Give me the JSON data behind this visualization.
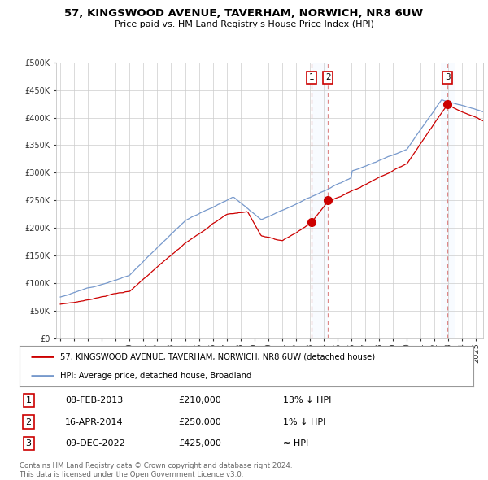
{
  "title": "57, KINGSWOOD AVENUE, TAVERHAM, NORWICH, NR8 6UW",
  "subtitle": "Price paid vs. HM Land Registry's House Price Index (HPI)",
  "legend_line1": "57, KINGSWOOD AVENUE, TAVERHAM, NORWICH, NR8 6UW (detached house)",
  "legend_line2": "HPI: Average price, detached house, Broadland",
  "footer1": "Contains HM Land Registry data © Crown copyright and database right 2024.",
  "footer2": "This data is licensed under the Open Government Licence v3.0.",
  "transactions": [
    {
      "num": "1",
      "date": "08-FEB-2013",
      "price": "£210,000",
      "hpi": "13% ↓ HPI",
      "year": 2013.1
    },
    {
      "num": "2",
      "date": "16-APR-2014",
      "price": "£250,000",
      "hpi": "1% ↓ HPI",
      "year": 2014.3
    },
    {
      "num": "3",
      "date": "09-DEC-2022",
      "price": "£425,000",
      "hpi": "≈ HPI",
      "year": 2022.93
    }
  ],
  "sale_prices": [
    210000,
    250000,
    425000
  ],
  "sale_years": [
    2013.1,
    2014.3,
    2022.93
  ],
  "hpi_color": "#7799cc",
  "price_color": "#cc0000",
  "marker_color": "#cc0000",
  "vline_color": "#dd8888",
  "highlight_color": "#ddeeff",
  "ylim": [
    0,
    500000
  ],
  "yticks": [
    0,
    50000,
    100000,
    150000,
    200000,
    250000,
    300000,
    350000,
    400000,
    450000,
    500000
  ],
  "xlim_start": 1994.7,
  "xlim_end": 2025.5,
  "background_color": "#ffffff",
  "grid_color": "#cccccc"
}
